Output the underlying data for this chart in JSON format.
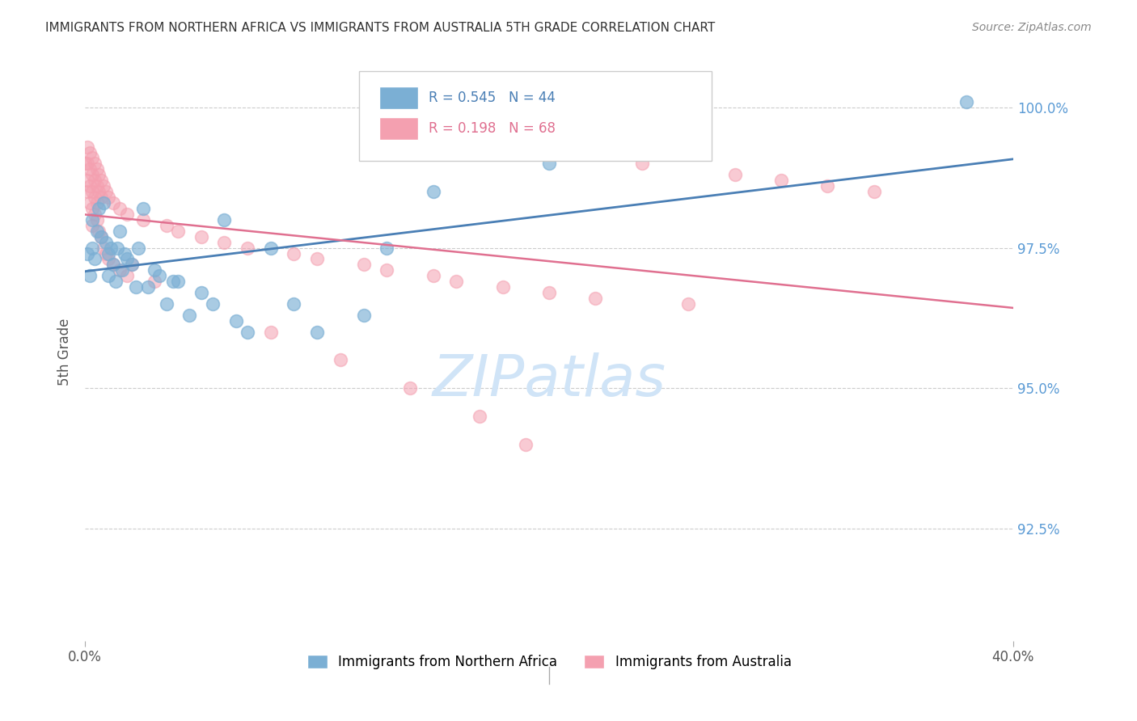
{
  "title": "IMMIGRANTS FROM NORTHERN AFRICA VS IMMIGRANTS FROM AUSTRALIA 5TH GRADE CORRELATION CHART",
  "source": "Source: ZipAtlas.com",
  "ylabel": "5th Grade",
  "ytick_labels": [
    "100.0%",
    "97.5%",
    "95.0%",
    "92.5%"
  ],
  "ytick_values": [
    1.0,
    0.975,
    0.95,
    0.925
  ],
  "xlim": [
    0.0,
    0.4
  ],
  "ylim": [
    0.905,
    1.008
  ],
  "legend_blue_R": "R = 0.545",
  "legend_blue_N": "N = 44",
  "legend_pink_R": "R = 0.198",
  "legend_pink_N": "N = 68",
  "blue_color": "#7bafd4",
  "pink_color": "#f4a0b0",
  "blue_line_color": "#4a7fb5",
  "pink_line_color": "#e07090",
  "background_color": "#ffffff",
  "grid_color": "#cccccc",
  "title_color": "#333333",
  "right_tick_color": "#5b9bd5",
  "watermark_color": "#d0e4f7",
  "blue_points": [
    [
      0.001,
      0.974
    ],
    [
      0.002,
      0.97
    ],
    [
      0.003,
      0.975
    ],
    [
      0.003,
      0.98
    ],
    [
      0.004,
      0.973
    ],
    [
      0.005,
      0.978
    ],
    [
      0.006,
      0.982
    ],
    [
      0.007,
      0.977
    ],
    [
      0.008,
      0.983
    ],
    [
      0.009,
      0.976
    ],
    [
      0.01,
      0.974
    ],
    [
      0.01,
      0.97
    ],
    [
      0.011,
      0.975
    ],
    [
      0.012,
      0.972
    ],
    [
      0.013,
      0.969
    ],
    [
      0.014,
      0.975
    ],
    [
      0.015,
      0.978
    ],
    [
      0.016,
      0.971
    ],
    [
      0.017,
      0.974
    ],
    [
      0.018,
      0.973
    ],
    [
      0.02,
      0.972
    ],
    [
      0.022,
      0.968
    ],
    [
      0.023,
      0.975
    ],
    [
      0.025,
      0.982
    ],
    [
      0.027,
      0.968
    ],
    [
      0.03,
      0.971
    ],
    [
      0.032,
      0.97
    ],
    [
      0.035,
      0.965
    ],
    [
      0.038,
      0.969
    ],
    [
      0.04,
      0.969
    ],
    [
      0.045,
      0.963
    ],
    [
      0.05,
      0.967
    ],
    [
      0.055,
      0.965
    ],
    [
      0.06,
      0.98
    ],
    [
      0.065,
      0.962
    ],
    [
      0.07,
      0.96
    ],
    [
      0.08,
      0.975
    ],
    [
      0.09,
      0.965
    ],
    [
      0.1,
      0.96
    ],
    [
      0.12,
      0.963
    ],
    [
      0.13,
      0.975
    ],
    [
      0.15,
      0.985
    ],
    [
      0.2,
      0.99
    ],
    [
      0.38,
      1.001
    ]
  ],
  "pink_points": [
    [
      0.0,
      0.99
    ],
    [
      0.001,
      0.993
    ],
    [
      0.001,
      0.99
    ],
    [
      0.001,
      0.987
    ],
    [
      0.001,
      0.985
    ],
    [
      0.002,
      0.992
    ],
    [
      0.002,
      0.989
    ],
    [
      0.002,
      0.986
    ],
    [
      0.002,
      0.983
    ],
    [
      0.003,
      0.991
    ],
    [
      0.003,
      0.988
    ],
    [
      0.003,
      0.985
    ],
    [
      0.003,
      0.982
    ],
    [
      0.003,
      0.979
    ],
    [
      0.004,
      0.99
    ],
    [
      0.004,
      0.987
    ],
    [
      0.004,
      0.984
    ],
    [
      0.004,
      0.981
    ],
    [
      0.005,
      0.989
    ],
    [
      0.005,
      0.986
    ],
    [
      0.005,
      0.983
    ],
    [
      0.005,
      0.98
    ],
    [
      0.006,
      0.988
    ],
    [
      0.006,
      0.985
    ],
    [
      0.006,
      0.978
    ],
    [
      0.007,
      0.987
    ],
    [
      0.007,
      0.984
    ],
    [
      0.007,
      0.977
    ],
    [
      0.008,
      0.986
    ],
    [
      0.008,
      0.975
    ],
    [
      0.009,
      0.985
    ],
    [
      0.009,
      0.974
    ],
    [
      0.01,
      0.984
    ],
    [
      0.01,
      0.973
    ],
    [
      0.012,
      0.983
    ],
    [
      0.012,
      0.972
    ],
    [
      0.015,
      0.982
    ],
    [
      0.015,
      0.971
    ],
    [
      0.018,
      0.981
    ],
    [
      0.018,
      0.97
    ],
    [
      0.02,
      0.972
    ],
    [
      0.025,
      0.98
    ],
    [
      0.03,
      0.969
    ],
    [
      0.035,
      0.979
    ],
    [
      0.04,
      0.978
    ],
    [
      0.05,
      0.977
    ],
    [
      0.06,
      0.976
    ],
    [
      0.07,
      0.975
    ],
    [
      0.08,
      0.96
    ],
    [
      0.09,
      0.974
    ],
    [
      0.1,
      0.973
    ],
    [
      0.11,
      0.955
    ],
    [
      0.12,
      0.972
    ],
    [
      0.13,
      0.971
    ],
    [
      0.14,
      0.95
    ],
    [
      0.15,
      0.97
    ],
    [
      0.16,
      0.969
    ],
    [
      0.17,
      0.945
    ],
    [
      0.18,
      0.968
    ],
    [
      0.19,
      0.94
    ],
    [
      0.2,
      0.967
    ],
    [
      0.22,
      0.966
    ],
    [
      0.24,
      0.99
    ],
    [
      0.26,
      0.965
    ],
    [
      0.28,
      0.988
    ],
    [
      0.3,
      0.987
    ],
    [
      0.32,
      0.986
    ],
    [
      0.34,
      0.985
    ]
  ]
}
